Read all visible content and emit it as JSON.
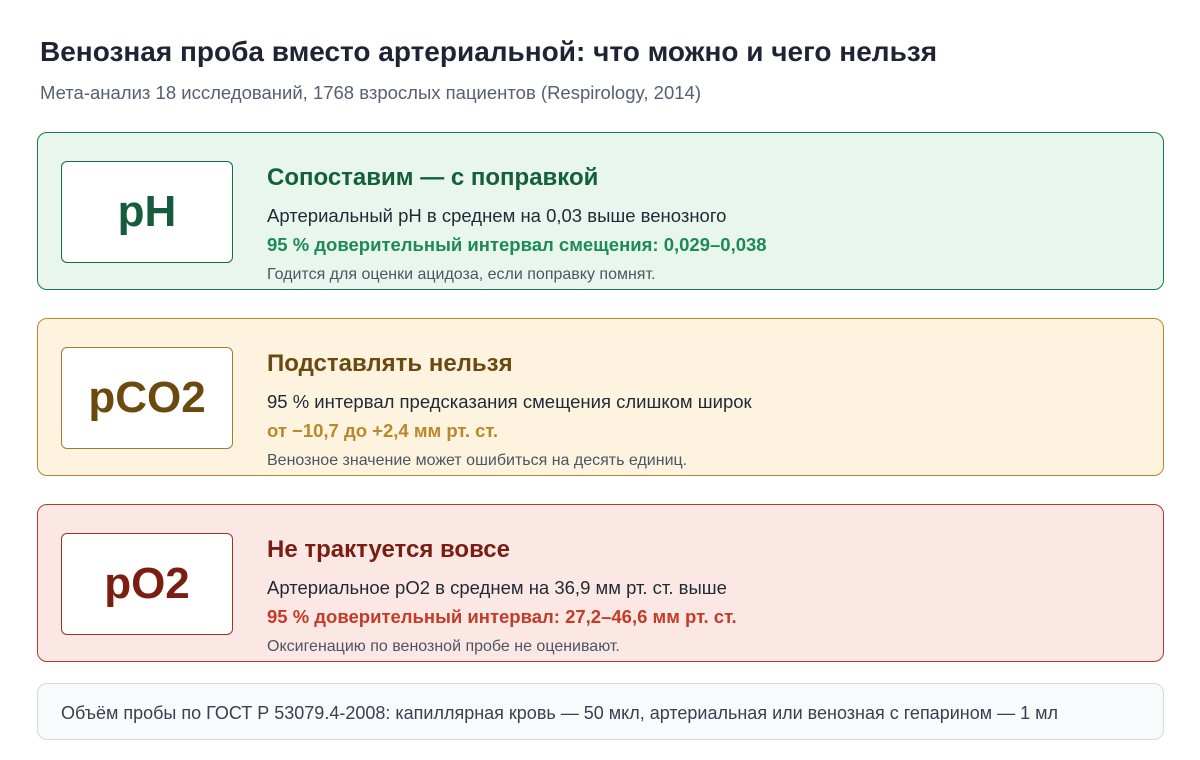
{
  "header": {
    "title": "Венозная проба вместо артериальной: что можно и чего нельзя",
    "subtitle": "Мета-анализ 18 исследований, 1768 взрослых пациентов (Respirology, 2014)"
  },
  "cards": [
    {
      "badge": "pH",
      "heading": "Сопоставим — с поправкой",
      "line1": "Артериальный pH в среднем на 0,03 выше венозного",
      "line2": "95 % доверительный интервал смещения: 0,029–0,038",
      "line3": "Годится для оценки ацидоза, если поправку помнят."
    },
    {
      "badge": "pCO2",
      "heading": "Подставлять нельзя",
      "line1": "95 % интервал предсказания смещения слишком широк",
      "line2": "от −10,7 до +2,4 мм рт. ст.",
      "line3": "Венозное значение может ошибиться на десять единиц."
    },
    {
      "badge": "pO2",
      "heading": "Не трактуется вовсе",
      "line1": "Артериальное pO2 в среднем на 36,9 мм рт. ст. выше",
      "line2": "95 % доверительный интервал: 27,2–46,6 мм рт. ст.",
      "line3": "Оксигенацию по венозной пробе не оценивают."
    }
  ],
  "footer": {
    "text": "Объём пробы по ГОСТ Р 53079.4-2008: капиллярная кровь — 50 мкл, артериальная или венозная с гепарином — 1 мл"
  },
  "colors": {
    "ph": "#1a7a4c",
    "pco2": "#b9882a",
    "po2": "#b43a2a"
  }
}
